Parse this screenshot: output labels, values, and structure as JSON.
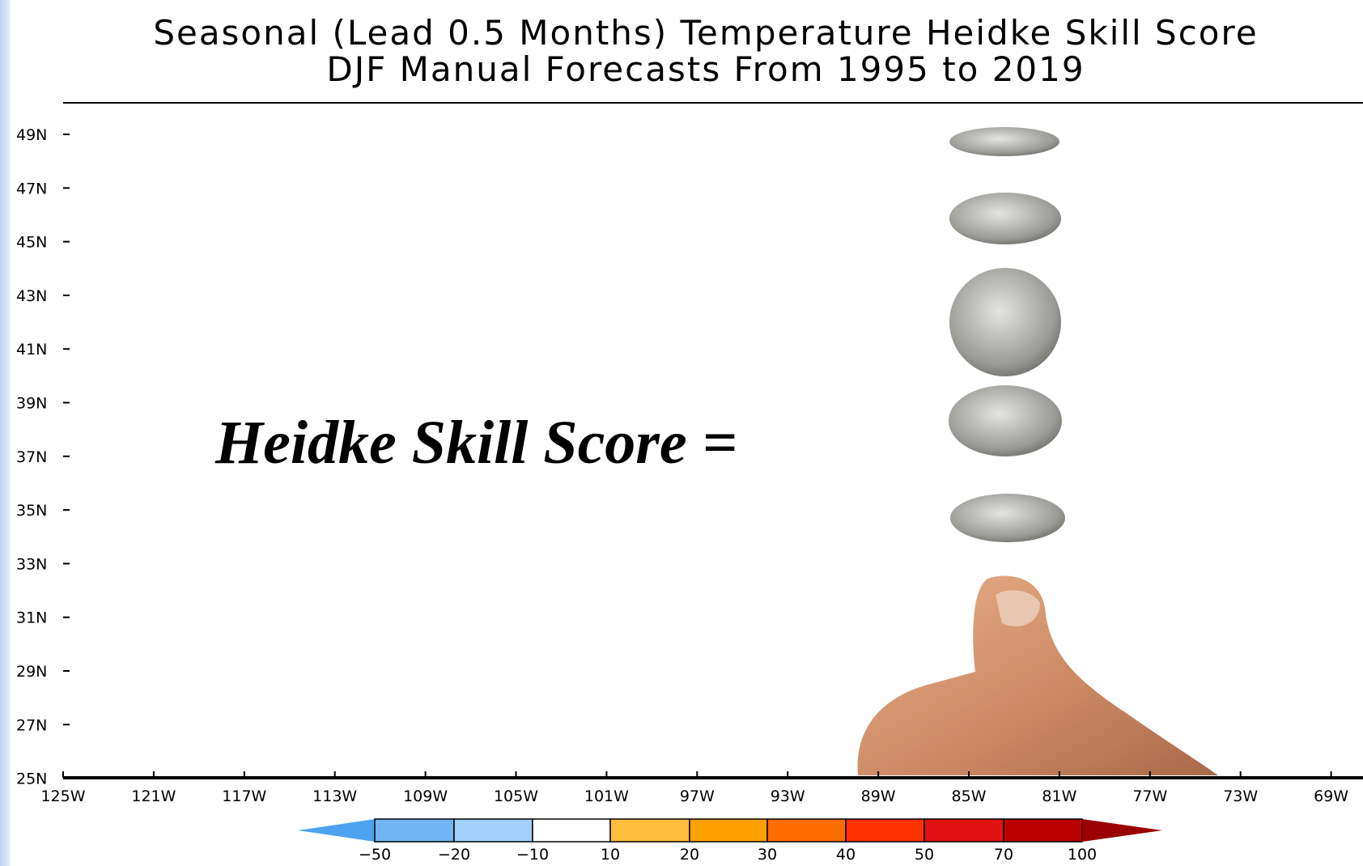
{
  "header": {
    "title": [
      "Seasonal (Lead 0.5 Months) Temperature Heidke Skill Score",
      "DJF Manual Forecasts From 1995 to 2019"
    ]
  },
  "map": {
    "lat_labels": [
      "49N",
      "47N",
      "45N",
      "43N",
      "41N",
      "39N",
      "37N",
      "35N",
      "33N",
      "31N",
      "29N",
      "27N",
      "25N"
    ],
    "lon_labels": [
      "125W",
      "121W",
      "117W",
      "113W",
      "109W",
      "105W",
      "101W",
      "97W",
      "93W",
      "89W",
      "85W",
      "81W",
      "77W",
      "73W",
      "69W"
    ]
  },
  "colorbar": {
    "labels": [
      "−50",
      "−20",
      "−10",
      "10",
      "20",
      "30",
      "40",
      "50",
      "70",
      "100"
    ],
    "colors": [
      "#4ea3f0",
      "#70b6f5",
      "#a2d1fa",
      "#ffffff",
      "#ffbd3c",
      "#ffa000",
      "#ff6c00",
      "#ff3300",
      "#e01212",
      "#bb0000",
      "#9a0000"
    ]
  },
  "overlay": {
    "text": "Heidke Skill Score ="
  }
}
